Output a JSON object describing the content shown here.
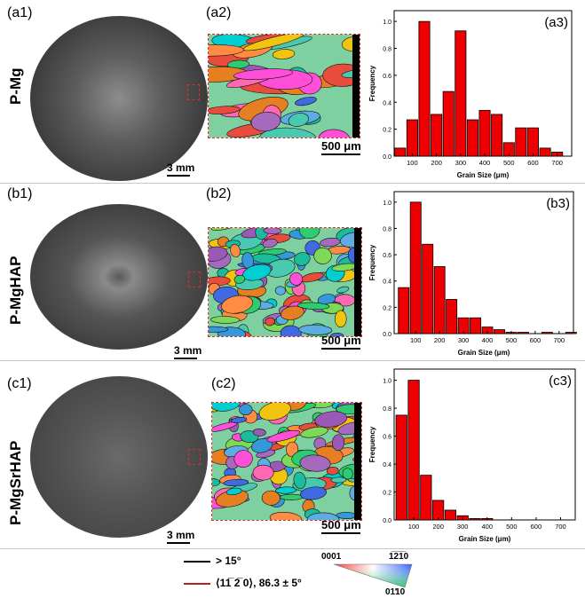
{
  "panels": {
    "a1": "(a1)",
    "a2": "(a2)",
    "b1": "(b1)",
    "b2": "(b2)",
    "c1": "(c1)",
    "c2": "(c2)"
  },
  "samples": [
    "P-Mg",
    "P-MgHAP",
    "P-MgSrHAP"
  ],
  "scale_macro": "3 mm",
  "scale_micro": "500 μm",
  "colors": {
    "bar": "#ee0000",
    "boundary_high": "#000000",
    "boundary_twin": "#b22222"
  },
  "legend": {
    "high_angle": "> 15°",
    "twin": "⟨11̅ 2̅ 0⟩, 86.3 ± 5°",
    "ipf_top_left": "0001",
    "ipf_top_right": "1̅2̅1̅0",
    "ipf_bottom": "01̕10"
  },
  "chart_data": [
    {
      "type": "bar",
      "panel": "(a3)",
      "xlabel": "Grain Size (μm)",
      "ylabel": "Frequency",
      "xticks": [
        100,
        200,
        300,
        400,
        500,
        600,
        700
      ],
      "yticks": [
        0.0,
        0.2,
        0.4,
        0.6,
        0.8,
        1.0
      ],
      "xlim": [
        25,
        760
      ],
      "ylim": [
        0,
        1.08
      ],
      "x": [
        50,
        100,
        150,
        200,
        250,
        300,
        350,
        400,
        450,
        500,
        550,
        600,
        650,
        700
      ],
      "values": [
        0.06,
        0.27,
        1.0,
        0.31,
        0.48,
        0.93,
        0.27,
        0.34,
        0.31,
        0.1,
        0.21,
        0.21,
        0.06,
        0.03
      ]
    },
    {
      "type": "bar",
      "panel": "(b3)",
      "xlabel": "Grain Size (μm)",
      "ylabel": "Frequency",
      "xticks": [
        100,
        200,
        300,
        400,
        500,
        600,
        700
      ],
      "yticks": [
        0.0,
        0.2,
        0.4,
        0.6,
        0.8,
        1.0
      ],
      "xlim": [
        10,
        760
      ],
      "ylim": [
        0,
        1.08
      ],
      "x": [
        50,
        100,
        150,
        200,
        250,
        300,
        350,
        400,
        450,
        500,
        550,
        600,
        650,
        700,
        750
      ],
      "values": [
        0.35,
        1.0,
        0.68,
        0.51,
        0.26,
        0.12,
        0.12,
        0.05,
        0.03,
        0.01,
        0.01,
        0.0,
        0.01,
        0.0,
        0.01
      ]
    },
    {
      "type": "bar",
      "panel": "(c3)",
      "xlabel": "Grain Size (μm)",
      "ylabel": "Frequency",
      "xticks": [
        100,
        200,
        300,
        400,
        500,
        600,
        700
      ],
      "yticks": [
        0.0,
        0.2,
        0.4,
        0.6,
        0.8,
        1.0
      ],
      "xlim": [
        20,
        760
      ],
      "ylim": [
        0,
        1.08
      ],
      "x": [
        50,
        100,
        150,
        200,
        250,
        300,
        350,
        400
      ],
      "values": [
        0.75,
        1.0,
        0.32,
        0.14,
        0.07,
        0.03,
        0.01,
        0.01
      ]
    }
  ]
}
